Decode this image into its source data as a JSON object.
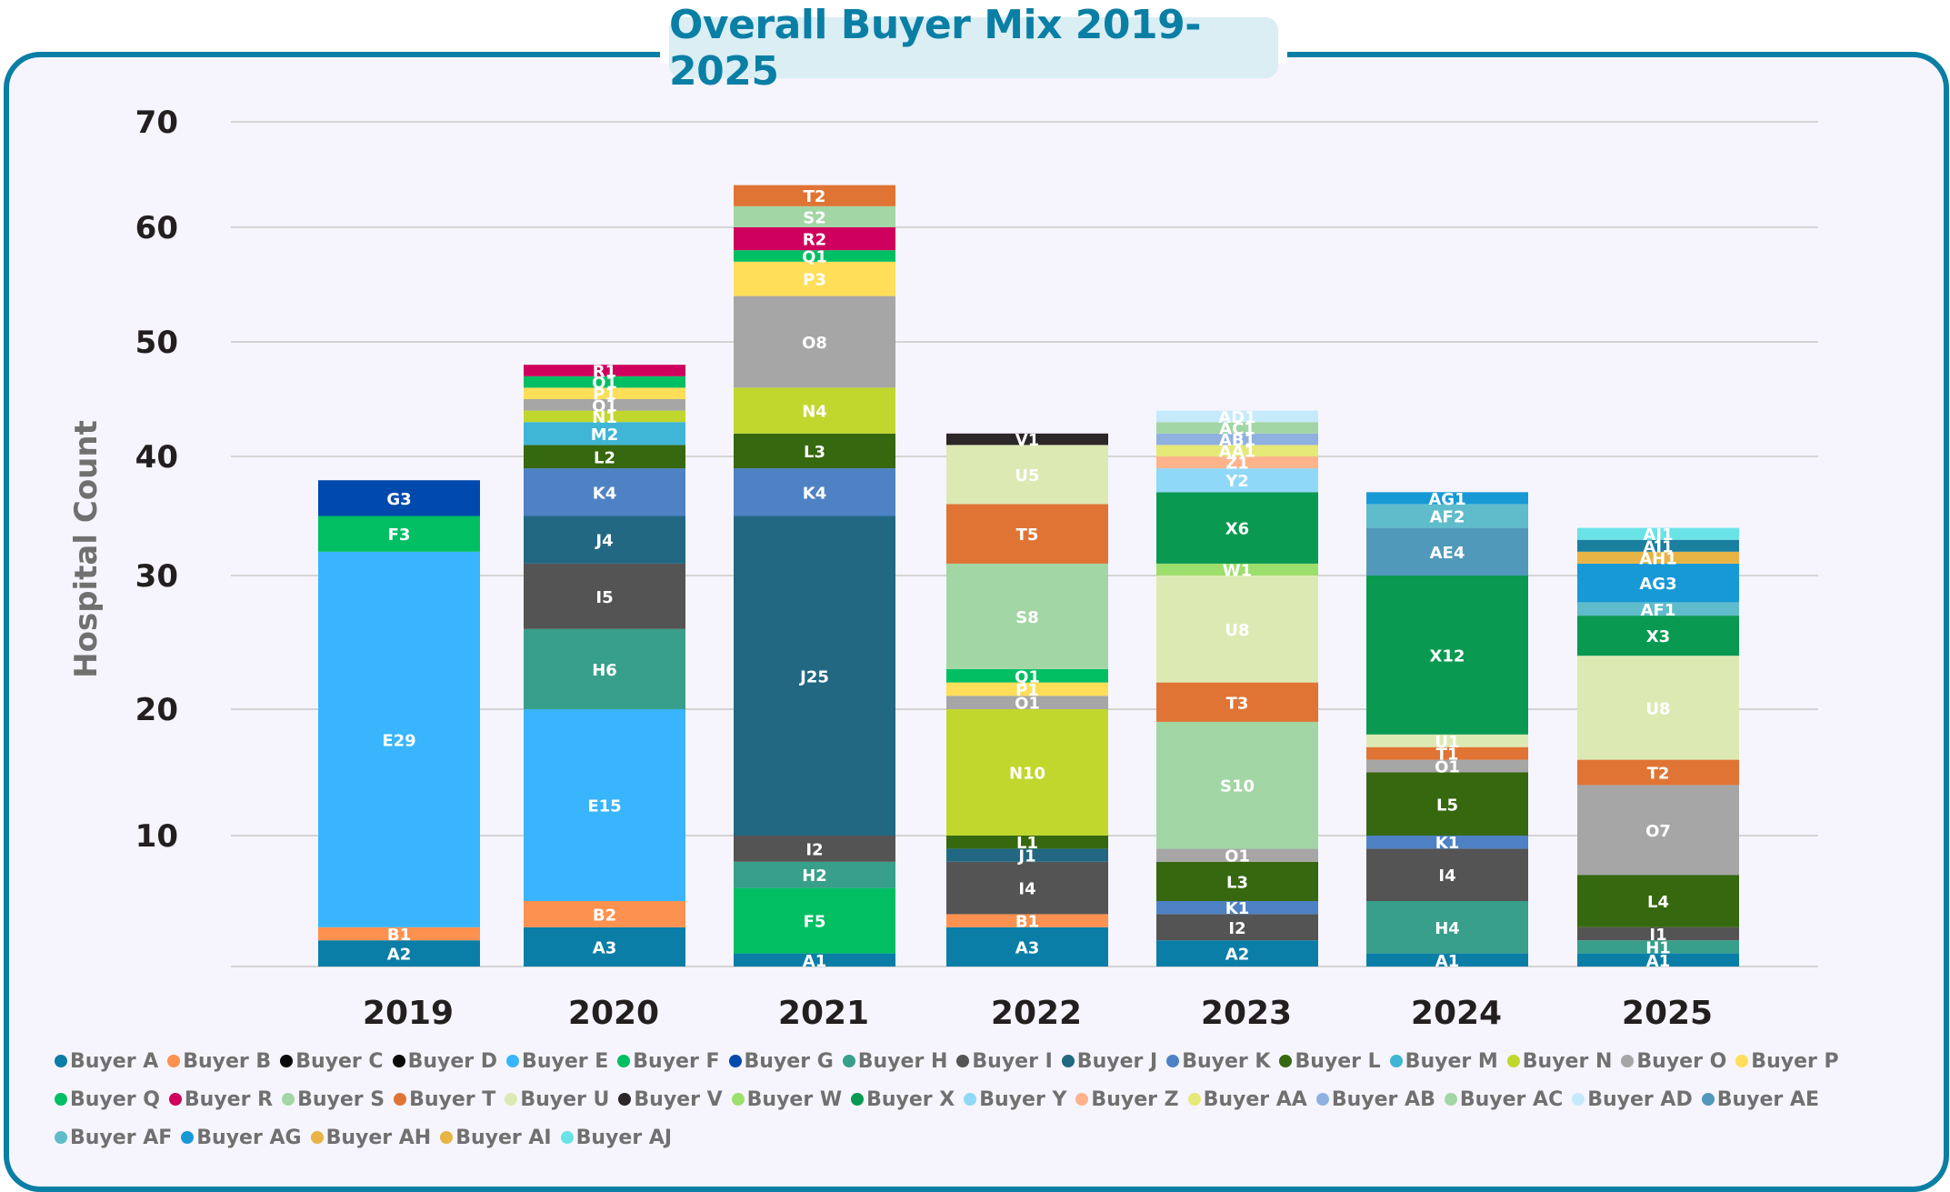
{
  "chart_data": {
    "type": "bar",
    "stacked": true,
    "title": "Overall Buyer Mix 2019-2025",
    "xlabel": "",
    "ylabel": "Hospital Count",
    "ylim": [
      0,
      70
    ],
    "yticks": [
      10,
      20,
      30,
      40,
      50,
      60,
      70
    ],
    "grid": true,
    "legend_position": "bottom",
    "categories": [
      "2019",
      "2020",
      "2021",
      "2022",
      "2023",
      "2024",
      "2025"
    ],
    "buyers": [
      {
        "key": "A",
        "name": "Buyer A",
        "color": "#0b7ea7"
      },
      {
        "key": "B",
        "name": "Buyer B",
        "color": "#fd914f"
      },
      {
        "key": "C",
        "name": "Buyer C",
        "color": "#0a0a0a"
      },
      {
        "key": "D",
        "name": "Buyer D",
        "color": "#0a0a0a"
      },
      {
        "key": "E",
        "name": "Buyer E",
        "color": "#38b5fc"
      },
      {
        "key": "F",
        "name": "Buyer F",
        "color": "#00bf63"
      },
      {
        "key": "G",
        "name": "Buyer G",
        "color": "#004aad"
      },
      {
        "key": "H",
        "name": "Buyer H",
        "color": "#389f8b"
      },
      {
        "key": "I",
        "name": "Buyer I",
        "color": "#545454"
      },
      {
        "key": "J",
        "name": "Buyer J",
        "color": "#226882"
      },
      {
        "key": "K",
        "name": "Buyer K",
        "color": "#4e82c5"
      },
      {
        "key": "L",
        "name": "Buyer L",
        "color": "#36680f"
      },
      {
        "key": "M",
        "name": "Buyer M",
        "color": "#3fb6d6"
      },
      {
        "key": "N",
        "name": "Buyer N",
        "color": "#c1d72e"
      },
      {
        "key": "O",
        "name": "Buyer O",
        "color": "#a6a6a6"
      },
      {
        "key": "P",
        "name": "Buyer P",
        "color": "#ffde59"
      },
      {
        "key": "Q",
        "name": "Buyer Q",
        "color": "#00bf63"
      },
      {
        "key": "R",
        "name": "Buyer R",
        "color": "#cf005d"
      },
      {
        "key": "S",
        "name": "Buyer S",
        "color": "#a2d6a5"
      },
      {
        "key": "T",
        "name": "Buyer T",
        "color": "#e07434"
      },
      {
        "key": "U",
        "name": "Buyer U",
        "color": "#dde9b3"
      },
      {
        "key": "V",
        "name": "Buyer V",
        "color": "#2b2627"
      },
      {
        "key": "W",
        "name": "Buyer W",
        "color": "#9ddf6c"
      },
      {
        "key": "X",
        "name": "Buyer X",
        "color": "#0a9951"
      },
      {
        "key": "Y",
        "name": "Buyer Y",
        "color": "#8fd8f8"
      },
      {
        "key": "Z",
        "name": "Buyer Z",
        "color": "#ffb38b"
      },
      {
        "key": "AA",
        "name": "Buyer AA",
        "color": "#e6e878"
      },
      {
        "key": "AB",
        "name": "Buyer AB",
        "color": "#8fb1e0"
      },
      {
        "key": "AC",
        "name": "Buyer AC",
        "color": "#a2d6a5"
      },
      {
        "key": "AD",
        "name": "Buyer AD",
        "color": "#c5eafc"
      },
      {
        "key": "AE",
        "name": "Buyer AE",
        "color": "#5199ba"
      },
      {
        "key": "AF",
        "name": "Buyer AF",
        "color": "#5fbccb"
      },
      {
        "key": "AG",
        "name": "Buyer AG",
        "color": "#1799d6"
      },
      {
        "key": "AH",
        "name": "Buyer AH",
        "color": "#e8b445"
      },
      {
        "key": "AI",
        "name": "Buyer AI",
        "color": "#e8b445"
      },
      {
        "key": "AJ",
        "name": "Buyer AJ",
        "color": "#6ae3e6"
      }
    ],
    "stacks": [
      {
        "year": "2019",
        "total": 38,
        "segments": [
          {
            "buyer": "A",
            "label": "A2",
            "value": 2
          },
          {
            "buyer": "B",
            "label": "B1",
            "value": 1
          },
          {
            "buyer": "E",
            "label": "E29",
            "value": 29
          },
          {
            "buyer": "F",
            "label": "F3",
            "value": 3
          },
          {
            "buyer": "G",
            "label": "G3",
            "value": 3
          }
        ]
      },
      {
        "year": "2020",
        "total": 48,
        "segments": [
          {
            "buyer": "A",
            "label": "A3",
            "value": 3
          },
          {
            "buyer": "B",
            "label": "B2",
            "value": 2
          },
          {
            "buyer": "E",
            "label": "E15",
            "value": 15
          },
          {
            "buyer": "H",
            "label": "H6",
            "value": 6
          },
          {
            "buyer": "I",
            "label": "I5",
            "value": 5
          },
          {
            "buyer": "J",
            "label": "J4",
            "value": 4
          },
          {
            "buyer": "K",
            "label": "K4",
            "value": 4
          },
          {
            "buyer": "L",
            "label": "L2",
            "value": 2
          },
          {
            "buyer": "M",
            "label": "M2",
            "value": 2
          },
          {
            "buyer": "N",
            "label": "N1",
            "value": 1
          },
          {
            "buyer": "O",
            "label": "O1",
            "value": 1
          },
          {
            "buyer": "P",
            "label": "P1",
            "value": 1
          },
          {
            "buyer": "Q",
            "label": "Q1",
            "value": 1
          },
          {
            "buyer": "R",
            "label": "R1",
            "value": 1
          }
        ]
      },
      {
        "year": "2021",
        "total": 64,
        "segments": [
          {
            "buyer": "A",
            "label": "A1",
            "value": 1
          },
          {
            "buyer": "F",
            "label": "F5",
            "value": 5
          },
          {
            "buyer": "H",
            "label": "H2",
            "value": 2
          },
          {
            "buyer": "I",
            "label": "I2",
            "value": 2
          },
          {
            "buyer": "J",
            "label": "J25",
            "value": 25
          },
          {
            "buyer": "K",
            "label": "K4",
            "value": 4
          },
          {
            "buyer": "L",
            "label": "L3",
            "value": 3
          },
          {
            "buyer": "N",
            "label": "N4",
            "value": 4
          },
          {
            "buyer": "O",
            "label": "O8",
            "value": 8
          },
          {
            "buyer": "P",
            "label": "P3",
            "value": 3
          },
          {
            "buyer": "Q",
            "label": "Q1",
            "value": 1
          },
          {
            "buyer": "R",
            "label": "R2",
            "value": 2
          },
          {
            "buyer": "S",
            "label": "S2",
            "value": 2
          },
          {
            "buyer": "T",
            "label": "T2",
            "value": 2
          }
        ]
      },
      {
        "year": "2022",
        "total": 42,
        "segments": [
          {
            "buyer": "A",
            "label": "A3",
            "value": 3
          },
          {
            "buyer": "B",
            "label": "B1",
            "value": 1
          },
          {
            "buyer": "I",
            "label": "I4",
            "value": 4
          },
          {
            "buyer": "J",
            "label": "J1",
            "value": 1
          },
          {
            "buyer": "L",
            "label": "L1",
            "value": 1
          },
          {
            "buyer": "N",
            "label": "N10",
            "value": 10
          },
          {
            "buyer": "O",
            "label": "O1",
            "value": 1
          },
          {
            "buyer": "P",
            "label": "P1",
            "value": 1
          },
          {
            "buyer": "Q",
            "label": "Q1",
            "value": 1
          },
          {
            "buyer": "S",
            "label": "S8",
            "value": 8
          },
          {
            "buyer": "T",
            "label": "T5",
            "value": 5
          },
          {
            "buyer": "U",
            "label": "U5",
            "value": 5
          },
          {
            "buyer": "V",
            "label": "V1",
            "value": 1
          }
        ]
      },
      {
        "year": "2023",
        "total": 44,
        "segments": [
          {
            "buyer": "A",
            "label": "A2",
            "value": 2
          },
          {
            "buyer": "I",
            "label": "I2",
            "value": 2
          },
          {
            "buyer": "K",
            "label": "K1",
            "value": 1
          },
          {
            "buyer": "L",
            "label": "L3",
            "value": 3
          },
          {
            "buyer": "O",
            "label": "O1",
            "value": 1
          },
          {
            "buyer": "S",
            "label": "S10",
            "value": 10
          },
          {
            "buyer": "T",
            "label": "T3",
            "value": 3
          },
          {
            "buyer": "U",
            "label": "U8",
            "value": 8
          },
          {
            "buyer": "W",
            "label": "W1",
            "value": 1
          },
          {
            "buyer": "X",
            "label": "X6",
            "value": 6
          },
          {
            "buyer": "Y",
            "label": "Y2",
            "value": 2
          },
          {
            "buyer": "Z",
            "label": "Z1",
            "value": 1
          },
          {
            "buyer": "AA",
            "label": "AA1",
            "value": 1
          },
          {
            "buyer": "AB",
            "label": "AB1",
            "value": 1
          },
          {
            "buyer": "AC",
            "label": "AC1",
            "value": 1
          },
          {
            "buyer": "AD",
            "label": "AD1",
            "value": 1
          }
        ]
      },
      {
        "year": "2024",
        "total": 37,
        "segments": [
          {
            "buyer": "A",
            "label": "A1",
            "value": 1
          },
          {
            "buyer": "H",
            "label": "H4",
            "value": 4
          },
          {
            "buyer": "I",
            "label": "I4",
            "value": 4
          },
          {
            "buyer": "K",
            "label": "K1",
            "value": 1
          },
          {
            "buyer": "L",
            "label": "L5",
            "value": 5
          },
          {
            "buyer": "O",
            "label": "O1",
            "value": 1
          },
          {
            "buyer": "T",
            "label": "T1",
            "value": 1
          },
          {
            "buyer": "U",
            "label": "U1",
            "value": 1
          },
          {
            "buyer": "X",
            "label": "X12",
            "value": 12
          },
          {
            "buyer": "AE",
            "label": "AE4",
            "value": 4
          },
          {
            "buyer": "AF",
            "label": "AF2",
            "value": 2
          },
          {
            "buyer": "AG",
            "label": "AG1",
            "value": 1
          }
        ]
      },
      {
        "year": "2025",
        "total": 34,
        "segments": [
          {
            "buyer": "A",
            "label": "A1",
            "value": 1
          },
          {
            "buyer": "H",
            "label": "H1",
            "value": 1
          },
          {
            "buyer": "I",
            "label": "I1",
            "value": 1
          },
          {
            "buyer": "L",
            "label": "L4",
            "value": 4
          },
          {
            "buyer": "O",
            "label": "O7",
            "value": 7
          },
          {
            "buyer": "T",
            "label": "T2",
            "value": 2
          },
          {
            "buyer": "U",
            "label": "U8",
            "value": 8
          },
          {
            "buyer": "X",
            "label": "X3",
            "value": 3
          },
          {
            "buyer": "AF",
            "label": "AF1",
            "value": 1
          },
          {
            "buyer": "AG",
            "label": "AG3",
            "value": 3
          },
          {
            "buyer": "AH",
            "label": "AH1",
            "value": 1,
            "color": "#e8b445"
          },
          {
            "buyer": "AI",
            "label": "AI1",
            "value": 1,
            "color": "#1b7fa0"
          },
          {
            "buyer": "AJ",
            "label": "AJ1",
            "value": 1
          }
        ]
      }
    ]
  },
  "colors": {
    "frame_border": "#0a7fa5",
    "background": "#f6f5fd",
    "title_box": "#daeef4",
    "title_text": "#0a7fa5",
    "gridline": "#d4d4d4"
  }
}
